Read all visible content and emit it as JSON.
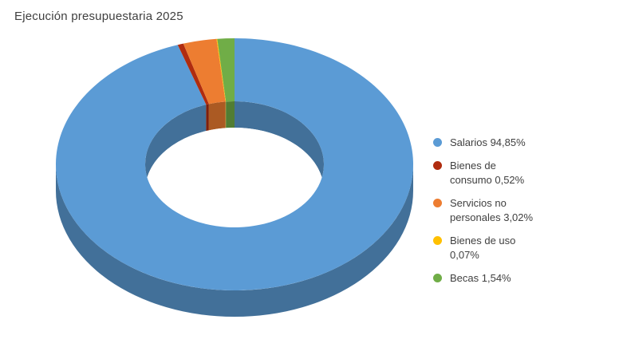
{
  "chart_data": {
    "type": "pie",
    "subtype": "donut-3d",
    "title": "Ejecución presupuestaria 2025",
    "labels": [
      "Salarios",
      "Bienes de consumo",
      "Servicios no personales",
      "Bienes de uso",
      "Becas"
    ],
    "values": [
      94.85,
      0.52,
      3.02,
      0.07,
      1.54
    ],
    "value_labels": [
      "94,85%",
      "0,52%",
      "3,02%",
      "0,07%",
      "1,54%"
    ],
    "legend_entries": [
      "Salarios 94,85%",
      "Bienes de consumo 0,52%",
      "Servicios no personales 3,02%",
      "Bienes de uso 0,07%",
      "Becas 1,54%"
    ],
    "colors": [
      "#5B9BD5",
      "#B02C0F",
      "#ED7D31",
      "#FFC000",
      "#70AD47"
    ],
    "legend_position": "right",
    "start_angle_deg": 0,
    "direction": "clockwise",
    "grid": false
  }
}
